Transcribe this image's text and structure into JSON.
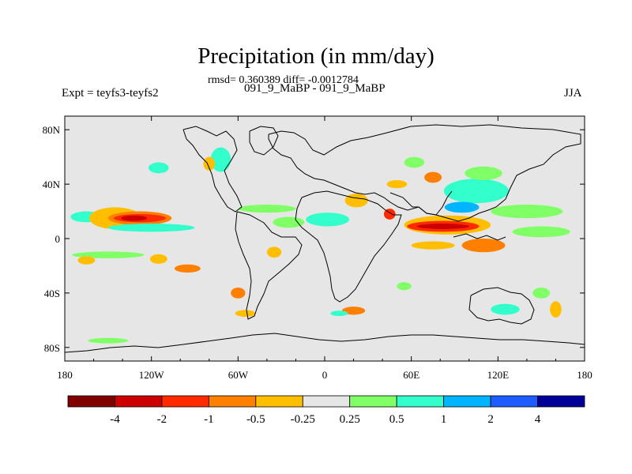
{
  "title": "Precipitation (in mm/day)",
  "stats": "rmsd= 0.360389 diff= -0.0012784",
  "experiment": "Expt = teyfs3-teyfs2",
  "case_label": "091_9_MaBP - 091_9_MaBP",
  "season": "JJA",
  "chart_data": {
    "type": "heatmap",
    "title": "Precipitation (in mm/day)",
    "units": "mm/day",
    "x_ticks": [
      "180",
      "120W",
      "60W",
      "0",
      "60E",
      "120E",
      "180"
    ],
    "x_tick_values": [
      -180,
      -120,
      -60,
      0,
      60,
      120,
      180
    ],
    "y_ticks": [
      "80N",
      "40N",
      "0",
      "40S",
      "80S"
    ],
    "y_tick_values": [
      80,
      40,
      0,
      -40,
      -80
    ],
    "xlim": [
      -180,
      180
    ],
    "ylim": [
      -90,
      90
    ],
    "background": "#e6e6e6",
    "colorbar": {
      "colors": [
        "#800000",
        "#cc0000",
        "#ff2a00",
        "#ff7f00",
        "#ffbf00",
        "#e6e6e6",
        "#80ff66",
        "#33ffcc",
        "#00b4ff",
        "#1f5cff",
        "#000099"
      ],
      "labels": [
        "-4",
        "-2",
        "-1",
        "-0.5",
        "-0.25",
        "0.25",
        "0.5",
        "1",
        "2",
        "4"
      ]
    },
    "anomaly_regions": [
      {
        "lon": -165,
        "lat": 16,
        "w": 22,
        "h": 8,
        "color": "#33ffcc"
      },
      {
        "lon": -145,
        "lat": 15,
        "w": 36,
        "h": 16,
        "color": "#ffbf00"
      },
      {
        "lon": -128,
        "lat": 15,
        "w": 44,
        "h": 10,
        "color": "#ff7f00"
      },
      {
        "lon": -128,
        "lat": 15,
        "w": 36,
        "h": 6,
        "color": "#ff2a00"
      },
      {
        "lon": -132,
        "lat": 15,
        "w": 18,
        "h": 4,
        "color": "#cc0000"
      },
      {
        "lon": -120,
        "lat": 8,
        "w": 60,
        "h": 6,
        "color": "#33ffcc"
      },
      {
        "lon": -150,
        "lat": -12,
        "w": 50,
        "h": 5,
        "color": "#80ff66"
      },
      {
        "lon": -115,
        "lat": -15,
        "w": 12,
        "h": 7,
        "color": "#ffbf00"
      },
      {
        "lon": -95,
        "lat": -22,
        "w": 18,
        "h": 6,
        "color": "#ff7f00"
      },
      {
        "lon": -165,
        "lat": -16,
        "w": 12,
        "h": 6,
        "color": "#ffbf00"
      },
      {
        "lon": -40,
        "lat": 22,
        "w": 40,
        "h": 6,
        "color": "#80ff66"
      },
      {
        "lon": -25,
        "lat": 12,
        "w": 22,
        "h": 8,
        "color": "#80ff66"
      },
      {
        "lon": 2,
        "lat": 14,
        "w": 30,
        "h": 10,
        "color": "#33ffcc"
      },
      {
        "lon": 22,
        "lat": 28,
        "w": 16,
        "h": 10,
        "color": "#ffbf00"
      },
      {
        "lon": 45,
        "lat": 18,
        "w": 8,
        "h": 8,
        "color": "#ff2a00"
      },
      {
        "lon": 50,
        "lat": 40,
        "w": 14,
        "h": 6,
        "color": "#ffbf00"
      },
      {
        "lon": 62,
        "lat": 56,
        "w": 14,
        "h": 8,
        "color": "#80ff66"
      },
      {
        "lon": 75,
        "lat": 45,
        "w": 12,
        "h": 8,
        "color": "#ff7f00"
      },
      {
        "lon": 105,
        "lat": 35,
        "w": 45,
        "h": 18,
        "color": "#33ffcc"
      },
      {
        "lon": 110,
        "lat": 48,
        "w": 26,
        "h": 10,
        "color": "#80ff66"
      },
      {
        "lon": 95,
        "lat": 23,
        "w": 24,
        "h": 8,
        "color": "#00b4ff"
      },
      {
        "lon": 85,
        "lat": 10,
        "w": 60,
        "h": 14,
        "color": "#ffbf00"
      },
      {
        "lon": 82,
        "lat": 9,
        "w": 50,
        "h": 8,
        "color": "#ff2a00"
      },
      {
        "lon": 82,
        "lat": 9,
        "w": 36,
        "h": 4,
        "color": "#cc0000"
      },
      {
        "lon": 75,
        "lat": -5,
        "w": 30,
        "h": 6,
        "color": "#ffbf00"
      },
      {
        "lon": 110,
        "lat": -5,
        "w": 30,
        "h": 10,
        "color": "#ff7f00"
      },
      {
        "lon": 140,
        "lat": 20,
        "w": 50,
        "h": 10,
        "color": "#80ff66"
      },
      {
        "lon": 150,
        "lat": 5,
        "w": 40,
        "h": 8,
        "color": "#80ff66"
      },
      {
        "lon": -72,
        "lat": 58,
        "w": 14,
        "h": 18,
        "color": "#33ffcc"
      },
      {
        "lon": -80,
        "lat": 55,
        "w": 8,
        "h": 10,
        "color": "#ffbf00"
      },
      {
        "lon": -115,
        "lat": 52,
        "w": 14,
        "h": 8,
        "color": "#33ffcc"
      },
      {
        "lon": 20,
        "lat": -53,
        "w": 16,
        "h": 6,
        "color": "#ff7f00"
      },
      {
        "lon": 10,
        "lat": -55,
        "w": 12,
        "h": 4,
        "color": "#33ffcc"
      },
      {
        "lon": 55,
        "lat": -35,
        "w": 10,
        "h": 6,
        "color": "#80ff66"
      },
      {
        "lon": 125,
        "lat": -52,
        "w": 20,
        "h": 8,
        "color": "#33ffcc"
      },
      {
        "lon": 150,
        "lat": -40,
        "w": 12,
        "h": 8,
        "color": "#80ff66"
      },
      {
        "lon": 160,
        "lat": -52,
        "w": 8,
        "h": 12,
        "color": "#ffbf00"
      },
      {
        "lon": -55,
        "lat": -55,
        "w": 14,
        "h": 5,
        "color": "#ffbf00"
      },
      {
        "lon": -150,
        "lat": -75,
        "w": 28,
        "h": 4,
        "color": "#80ff66"
      },
      {
        "lon": -60,
        "lat": -40,
        "w": 10,
        "h": 8,
        "color": "#ff7f00"
      },
      {
        "lon": -35,
        "lat": -10,
        "w": 10,
        "h": 8,
        "color": "#ffbf00"
      }
    ]
  }
}
